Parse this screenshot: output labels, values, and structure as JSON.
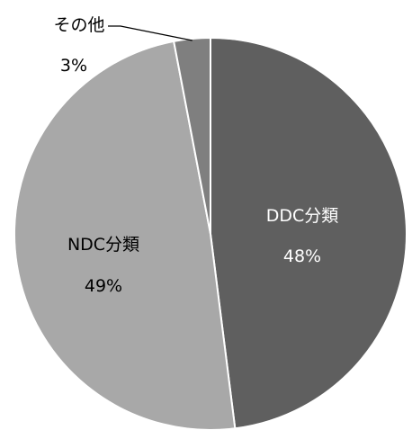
{
  "chart_data": {
    "type": "pie",
    "title": "",
    "start": "12 o'clock",
    "direction": "clockwise",
    "slices": [
      {
        "label": "DDC分類",
        "value": 48,
        "value_label": "48%",
        "color": "#5f5f5f",
        "label_color": "#ffffff"
      },
      {
        "label": "NDC分類",
        "value": 49,
        "value_label": "49%",
        "color": "#a8a8a8",
        "label_color": "#000000"
      },
      {
        "label": "その他",
        "value": 3,
        "value_label": "3%",
        "color": "#7f7f7f",
        "label_color": "#000000"
      }
    ],
    "slice_border_color": "#ffffff",
    "leader_line_color": "#000000"
  }
}
